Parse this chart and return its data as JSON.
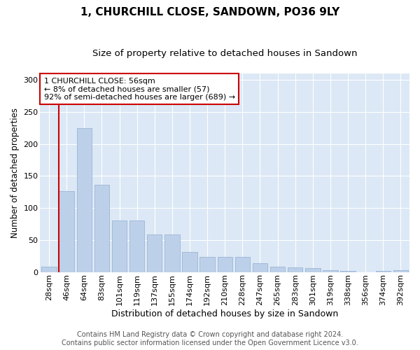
{
  "title": "1, CHURCHILL CLOSE, SANDOWN, PO36 9LY",
  "subtitle": "Size of property relative to detached houses in Sandown",
  "xlabel": "Distribution of detached houses by size in Sandown",
  "ylabel": "Number of detached properties",
  "categories": [
    "28sqm",
    "46sqm",
    "64sqm",
    "83sqm",
    "101sqm",
    "119sqm",
    "137sqm",
    "155sqm",
    "174sqm",
    "192sqm",
    "210sqm",
    "228sqm",
    "247sqm",
    "265sqm",
    "283sqm",
    "301sqm",
    "319sqm",
    "338sqm",
    "356sqm",
    "374sqm",
    "392sqm"
  ],
  "values": [
    8,
    126,
    225,
    136,
    80,
    80,
    58,
    58,
    31,
    24,
    24,
    24,
    14,
    8,
    7,
    6,
    3,
    2,
    0,
    2,
    3
  ],
  "bar_color": "#bdd0e9",
  "bar_edge_color": "#9ab5d4",
  "vline_color": "#cc0000",
  "annotation_text": "1 CHURCHILL CLOSE: 56sqm\n← 8% of detached houses are smaller (57)\n92% of semi-detached houses are larger (689) →",
  "annotation_box_color": "#ffffff",
  "annotation_box_edge_color": "#cc0000",
  "ylim": [
    0,
    310
  ],
  "yticks": [
    0,
    50,
    100,
    150,
    200,
    250,
    300
  ],
  "plot_bg_color": "#dce8f5",
  "footer_line1": "Contains HM Land Registry data © Crown copyright and database right 2024.",
  "footer_line2": "Contains public sector information licensed under the Open Government Licence v3.0.",
  "title_fontsize": 11,
  "subtitle_fontsize": 9.5,
  "xlabel_fontsize": 9,
  "ylabel_fontsize": 8.5,
  "tick_fontsize": 8,
  "footer_fontsize": 7,
  "annot_fontsize": 8
}
